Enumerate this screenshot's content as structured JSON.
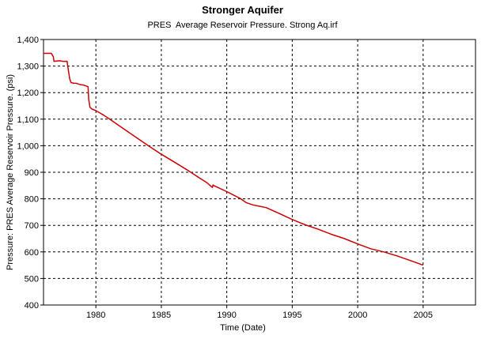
{
  "chart_data": {
    "type": "line",
    "title": "Stronger Aquifer",
    "subtitle": "PRES  Average Reservoir Pressure. Strong Aq.irf",
    "xlabel": "Time (Date)",
    "ylabel": "Pressure: PRES  Average Reservoir Pressure. (psi)",
    "xlim": [
      1976,
      2009
    ],
    "ylim": [
      400,
      1400
    ],
    "xticks": [
      1980,
      1985,
      1990,
      1995,
      2000,
      2005
    ],
    "xtick_labels": [
      "1980",
      "1985",
      "1990",
      "1995",
      "2000",
      "2005"
    ],
    "yticks": [
      400,
      500,
      600,
      700,
      800,
      900,
      1000,
      1100,
      1200,
      1300,
      1400
    ],
    "ytick_labels": [
      "400",
      "500",
      "600",
      "700",
      "800",
      "900",
      "1,000",
      "1,100",
      "1,200",
      "1,300",
      "1,400"
    ],
    "grid": true,
    "series": [
      {
        "color": "#cc0000",
        "x": [
          1976.0,
          1976.6,
          1976.75,
          1976.8,
          1977.2,
          1977.5,
          1977.7,
          1977.8,
          1977.85,
          1978.0,
          1978.1,
          1978.3,
          1978.5,
          1978.8,
          1979.1,
          1979.4,
          1979.45,
          1979.55,
          1979.7,
          1980.0,
          1980.5,
          1981.0,
          1982.0,
          1983.0,
          1984.0,
          1985.0,
          1986.0,
          1987.0,
          1988.0,
          1988.5,
          1988.9,
          1988.95,
          1989.0,
          1990.0,
          1991.0,
          1991.5,
          1992.0,
          1992.5,
          1993.0,
          1994.0,
          1995.0,
          1996.0,
          1997.0,
          1998.0,
          1999.0,
          2000.0,
          2001.0,
          2002.0,
          2003.0,
          2004.0,
          2005.0
        ],
        "y": [
          1348,
          1348,
          1335,
          1318,
          1320,
          1318,
          1318,
          1318,
          1300,
          1252,
          1238,
          1235,
          1235,
          1230,
          1228,
          1222,
          1175,
          1145,
          1138,
          1132,
          1118,
          1102,
          1068,
          1034,
          1000,
          968,
          938,
          908,
          876,
          860,
          843,
          852,
          850,
          827,
          802,
          785,
          777,
          772,
          767,
          745,
          722,
          702,
          685,
          666,
          650,
          630,
          612,
          600,
          585,
          568,
          550
        ]
      }
    ]
  }
}
